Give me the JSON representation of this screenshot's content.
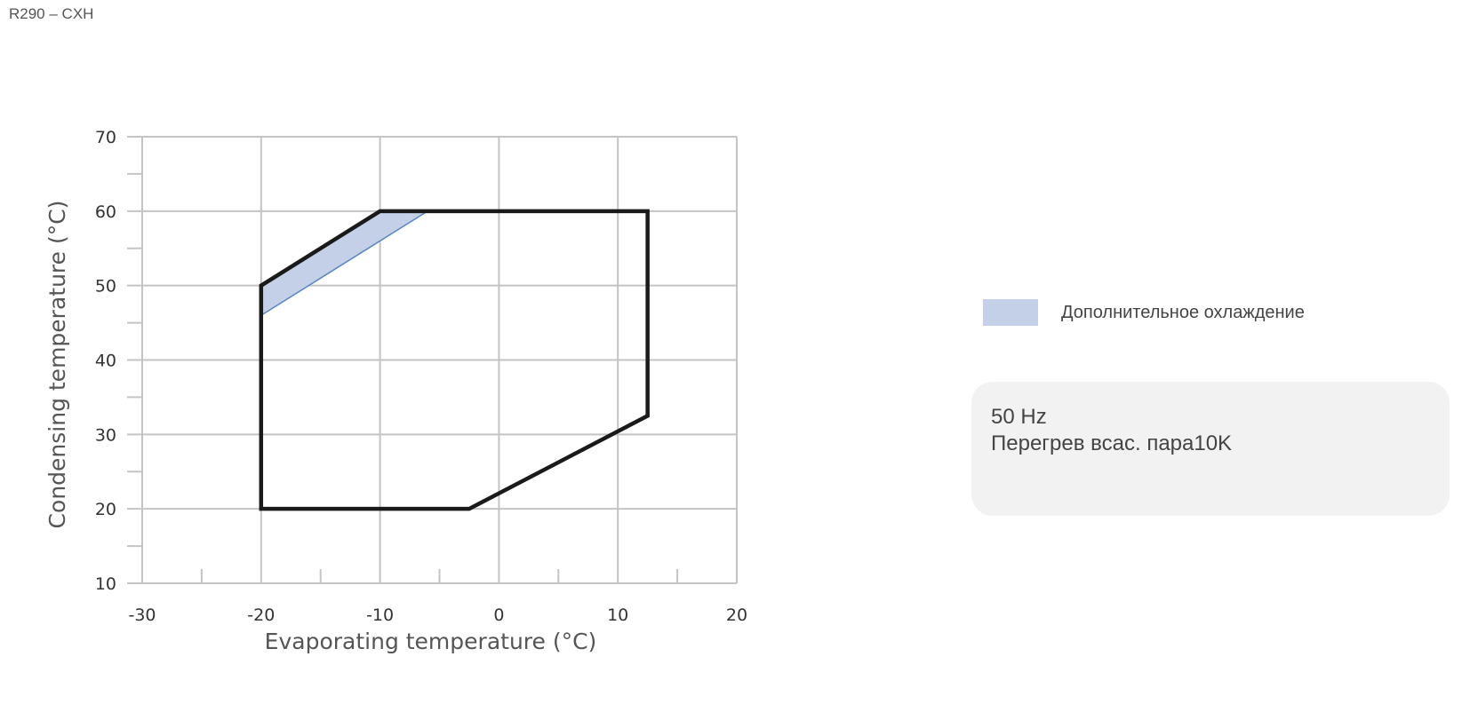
{
  "title": "R290 – CXH",
  "legend": {
    "label": "Дополнительное охлаждение",
    "color": "#c3d0e8"
  },
  "info": {
    "line1": "50 Hz",
    "line2": "Перегрев всас. пара10K"
  },
  "chart_data": {
    "type": "area",
    "xlabel": "Evaporating temperature (°C)",
    "ylabel": "Condensing temperature (°C)",
    "xlim": [
      -30,
      20
    ],
    "ylim": [
      10,
      70
    ],
    "xticks": [
      "-30",
      "-20",
      "-10",
      "0",
      "10",
      "20"
    ],
    "yticks": [
      "10",
      "20",
      "30",
      "40",
      "50",
      "60",
      "70"
    ],
    "grid": true,
    "series": [
      {
        "role": "envelope",
        "color": "#1a1a1a",
        "points": [
          [
            -20,
            20
          ],
          [
            -20,
            50
          ],
          [
            -10,
            60
          ],
          [
            12.5,
            60
          ],
          [
            12.5,
            32.5
          ],
          [
            -2.5,
            20
          ]
        ]
      },
      {
        "name": "Дополнительное охлаждение",
        "color": "#c3d0e8",
        "edge": "#5a86c6",
        "points": [
          [
            -20,
            50
          ],
          [
            -10,
            60
          ],
          [
            -6,
            60
          ],
          [
            -20,
            46
          ]
        ]
      }
    ],
    "legend_position": "right"
  }
}
